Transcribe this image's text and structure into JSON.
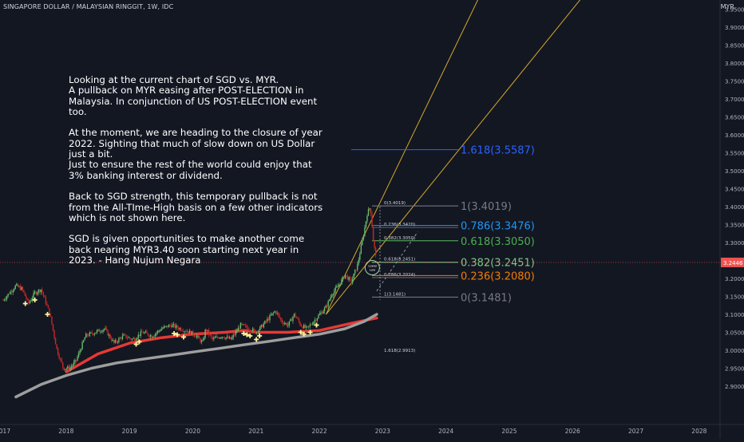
{
  "header": {
    "symbol_title": "SINGAPORE DOLLAR / MALAYSIAN RINGGIT, 1W, IDC",
    "currency": "MYR"
  },
  "annotation": {
    "paragraphs": [
      "Looking at the current chart of SGD vs. MYR.\nA pullback on MYR easing after POST-ELECTION in Malaysia. In conjunction of US POST-ELECTION event too.",
      "At the moment, we are heading to the closure of year 2022. Sighting that much of slow down on US Dollar just a bit.\nJust to ensure the rest of the world could enjoy that 3% banking interest or dividend.",
      "Back to SGD strength, this temporary pullback is not from the All-TIme-High basis on a few other indicators which is not shown here.",
      "SGD is given opportunities to make another come back nearing MYR3.40 soon starting next year in 2023. - Hang Nujum Negara"
    ]
  },
  "chart_data": {
    "type": "line",
    "title": "SINGAPORE DOLLAR / MALAYSIAN RINGGIT, 1W, IDC",
    "ylim": [
      2.87,
      3.995
    ],
    "xlim": [
      2017.0,
      2028.8
    ],
    "y_ticks": [
      "2.9000",
      "2.9500",
      "3.0000",
      "3.0500",
      "3.1000",
      "3.1500",
      "3.2000",
      "3.2500",
      "3.3000",
      "3.3500",
      "3.4000",
      "3.4500",
      "3.5000",
      "3.5500",
      "3.6000",
      "3.6500",
      "3.7000",
      "3.7500",
      "3.8000",
      "3.8500",
      "3.9000",
      "3.9500"
    ],
    "x_ticks": [
      "2017",
      "2018",
      "2019",
      "2020",
      "2021",
      "2022",
      "2023",
      "2024",
      "2025",
      "2026",
      "2027",
      "2028"
    ],
    "last_price": "3.2446",
    "last_price_color": "#ef5350",
    "price_series": {
      "x": [
        2017.0,
        2017.1,
        2017.2,
        2017.3,
        2017.4,
        2017.5,
        2017.6,
        2017.7,
        2017.75,
        2017.85,
        2017.95,
        2018.05,
        2018.15,
        2018.3,
        2018.45,
        2018.6,
        2018.75,
        2018.9,
        2019.05,
        2019.2,
        2019.35,
        2019.5,
        2019.65,
        2019.8,
        2019.95,
        2020.05,
        2020.15,
        2020.2,
        2020.3,
        2020.45,
        2020.6,
        2020.75,
        2020.9,
        2021.0,
        2021.1,
        2021.2,
        2021.3,
        2021.4,
        2021.5,
        2021.6,
        2021.7,
        2021.8,
        2021.9,
        2022.0,
        2022.1,
        2022.2,
        2022.3,
        2022.4,
        2022.5,
        2022.6,
        2022.7,
        2022.75,
        2022.8,
        2022.85,
        2022.9
      ],
      "y": [
        3.14,
        3.16,
        3.18,
        3.17,
        3.13,
        3.16,
        3.17,
        3.12,
        3.09,
        3.0,
        2.95,
        2.95,
        2.97,
        3.04,
        3.05,
        3.06,
        3.02,
        3.04,
        3.03,
        3.05,
        3.04,
        3.06,
        3.07,
        3.06,
        3.05,
        3.04,
        3.02,
        3.06,
        3.03,
        3.04,
        3.03,
        3.07,
        3.06,
        3.05,
        3.07,
        3.09,
        3.11,
        3.08,
        3.07,
        3.1,
        3.07,
        3.06,
        3.08,
        3.1,
        3.12,
        3.16,
        3.18,
        3.21,
        3.19,
        3.24,
        3.33,
        3.38,
        3.4,
        3.3,
        3.2446
      ]
    },
    "series": [
      {
        "name": "",
        "color": "#e53935",
        "x": [
          2018.0,
          2018.5,
          2019.0,
          2019.5,
          2020.0,
          2020.5,
          2020.8,
          2021.0,
          2021.5,
          2022.0,
          2022.5,
          2022.9
        ],
        "y": [
          2.94,
          2.99,
          3.02,
          3.035,
          3.045,
          3.05,
          3.055,
          3.05,
          3.05,
          3.055,
          3.075,
          3.09
        ]
      },
      {
        "name": "",
        "color": "#9e9e9e",
        "x": [
          2017.2,
          2017.6,
          2018.0,
          2018.4,
          2018.8,
          2019.2,
          2019.6,
          2020.0,
          2020.4,
          2020.8,
          2021.2,
          2021.6,
          2022.0,
          2022.4,
          2022.7,
          2022.9
        ],
        "y": [
          2.87,
          2.905,
          2.93,
          2.95,
          2.965,
          2.975,
          2.985,
          2.995,
          3.005,
          3.015,
          3.025,
          3.035,
          3.045,
          3.06,
          3.08,
          3.1
        ]
      }
    ],
    "buy_markers_x": [
      2017.35,
      2017.5,
      2017.7,
      2019.1,
      2019.15,
      2019.7,
      2019.75,
      2019.85,
      2020.8,
      2020.85,
      2020.9,
      2021.0,
      2021.05,
      2021.7,
      2021.75,
      2021.85,
      2021.95
    ],
    "fib_retracement": {
      "color": "#787b86",
      "levels": [
        {
          "label": "0(3.4019)",
          "value": 3.4019
        },
        {
          "label": "0.236(3.3420)",
          "value": 3.342
        },
        {
          "label": "0.382(3.3050)",
          "value": 3.305
        },
        {
          "label": "0.618(3.2451)",
          "value": 3.2451
        },
        {
          "label": "0.786(3.2024)",
          "value": 3.2024
        },
        {
          "label": "1(3.1481)",
          "value": 3.1481
        },
        {
          "label": "1.618(2.9913)",
          "value": 2.9913
        }
      ]
    },
    "fib_extension": {
      "levels": [
        {
          "label": "1.618(3.5587)",
          "value": 3.5587,
          "color": "#2962ff"
        },
        {
          "label": "1(3.4019)",
          "value": 3.4019,
          "color": "#787b86"
        },
        {
          "label": "0.786(3.3476)",
          "value": 3.3476,
          "color": "#2196f3"
        },
        {
          "label": "0.618(3.3050)",
          "value": 3.305,
          "color": "#4caf50"
        },
        {
          "label": "0.382(3.2451)",
          "value": 3.2451,
          "color": "#81c784"
        },
        {
          "label": "0.236(3.2080)",
          "value": 3.208,
          "color": "#f57c00"
        },
        {
          "label": "0(3.1481)",
          "value": 3.1481,
          "color": "#787b86"
        }
      ]
    },
    "trend_channel": {
      "color": "#d4a92a",
      "lines": [
        {
          "x": [
            2022.1,
            2024.55
          ],
          "y": [
            3.1,
            3.995
          ]
        },
        {
          "x": [
            2022.1,
            2026.2
          ],
          "y": [
            3.1,
            3.995
          ]
        }
      ]
    },
    "circle_label": [
      "Lower",
      "Low"
    ]
  }
}
